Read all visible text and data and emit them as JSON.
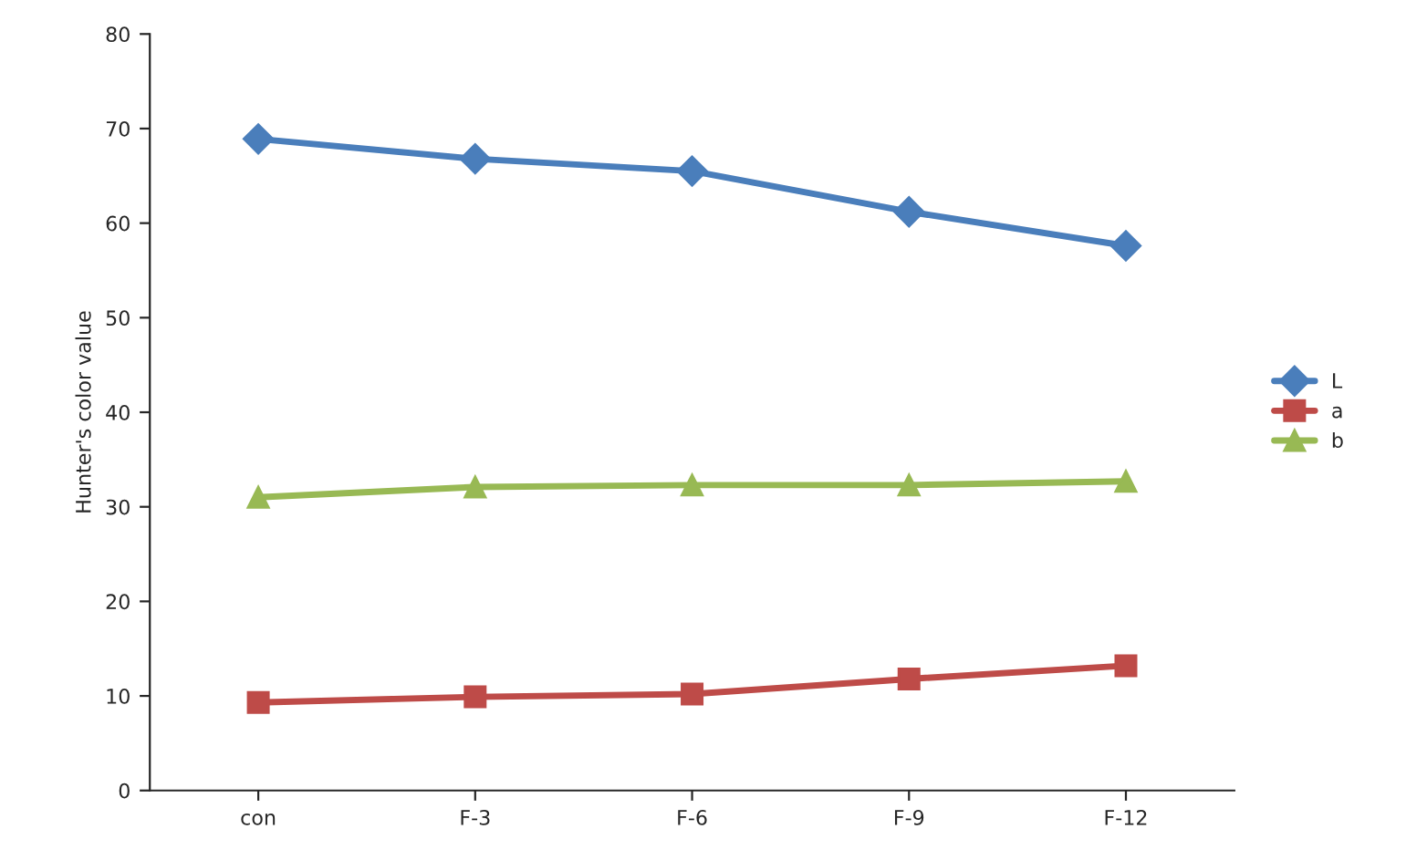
{
  "chart_data": {
    "type": "line",
    "ylabel": "Hunter's color value",
    "categories": [
      "con",
      "F-3",
      "F-6",
      "F-9",
      "F-12"
    ],
    "series": [
      {
        "name": "L",
        "color": "#4a7ebb",
        "marker": "diamond",
        "values": [
          68.9,
          66.8,
          65.5,
          61.2,
          57.6
        ]
      },
      {
        "name": "a",
        "color": "#be4b48",
        "marker": "square",
        "values": [
          9.3,
          9.9,
          10.2,
          11.8,
          13.2
        ]
      },
      {
        "name": "b",
        "color": "#98b954",
        "marker": "triangle",
        "values": [
          31.0,
          32.1,
          32.3,
          32.3,
          32.7
        ]
      }
    ],
    "ylim": [
      0,
      80
    ],
    "yticks": [
      0,
      10,
      20,
      30,
      40,
      50,
      60,
      70,
      80
    ],
    "grid": false,
    "legend": "right"
  }
}
